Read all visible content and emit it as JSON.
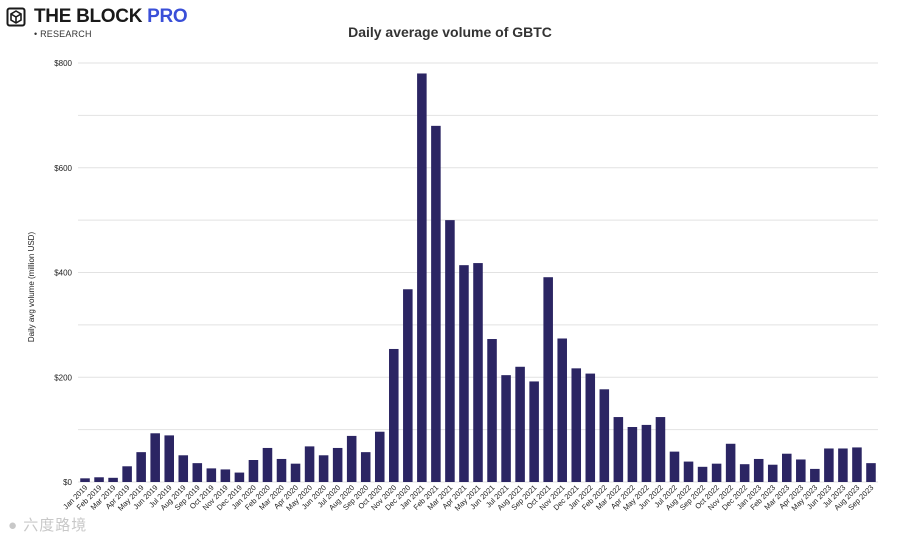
{
  "brand": {
    "name": "THE BLOCK",
    "name_suffix": "PRO",
    "sub": "RESEARCH",
    "accent": "#3a4fd8"
  },
  "watermark": {
    "text": "六度路境"
  },
  "chart_data": {
    "type": "bar",
    "title": "Daily average volume of GBTC",
    "ylabel": "Daily avg volume (million USD)",
    "xlabel": "",
    "ylim": [
      0,
      800
    ],
    "yticks": [
      0,
      200,
      400,
      600,
      800
    ],
    "ytick_labels": [
      "$0",
      "$200",
      "$400",
      "$600",
      "$800"
    ],
    "grid": true,
    "bar_color": "#2b2563",
    "categories": [
      "Jan 2019",
      "Feb 2019",
      "Mar 2019",
      "Apr 2019",
      "May 2019",
      "Jun 2019",
      "Jul 2019",
      "Aug 2019",
      "Sep 2019",
      "Oct 2019",
      "Nov 2019",
      "Dec 2019",
      "Jan 2020",
      "Feb 2020",
      "Mar 2020",
      "Apr 2020",
      "May 2020",
      "Jun 2020",
      "Jul 2020",
      "Aug 2020",
      "Sep 2020",
      "Oct 2020",
      "Nov 2020",
      "Dec 2020",
      "Jan 2021",
      "Feb 2021",
      "Mar 2021",
      "Apr 2021",
      "May 2021",
      "Jun 2021",
      "Jul 2021",
      "Aug 2021",
      "Sep 2021",
      "Oct 2021",
      "Nov 2021",
      "Dec 2021",
      "Jan 2022",
      "Feb 2022",
      "Mar 2022",
      "Apr 2022",
      "May 2022",
      "Jun 2022",
      "Jul 2022",
      "Aug 2022",
      "Sep 2022",
      "Oct 2022",
      "Nov 2022",
      "Dec 2022",
      "Jan 2023",
      "Feb 2023",
      "Mar 2023",
      "Apr 2023",
      "May 2023",
      "Jun 2023",
      "Jul 2023",
      "Aug 2023",
      "Sep 2023"
    ],
    "values": [
      7,
      9,
      8,
      30,
      57,
      93,
      89,
      51,
      36,
      26,
      24,
      18,
      42,
      65,
      44,
      35,
      68,
      51,
      65,
      88,
      57,
      96,
      254,
      368,
      780,
      680,
      500,
      414,
      418,
      273,
      204,
      220,
      192,
      391,
      274,
      217,
      207,
      177,
      124,
      105,
      109,
      124,
      58,
      39,
      29,
      35,
      73,
      34,
      44,
      33,
      54,
      43,
      25,
      64,
      64,
      66,
      36
    ]
  }
}
